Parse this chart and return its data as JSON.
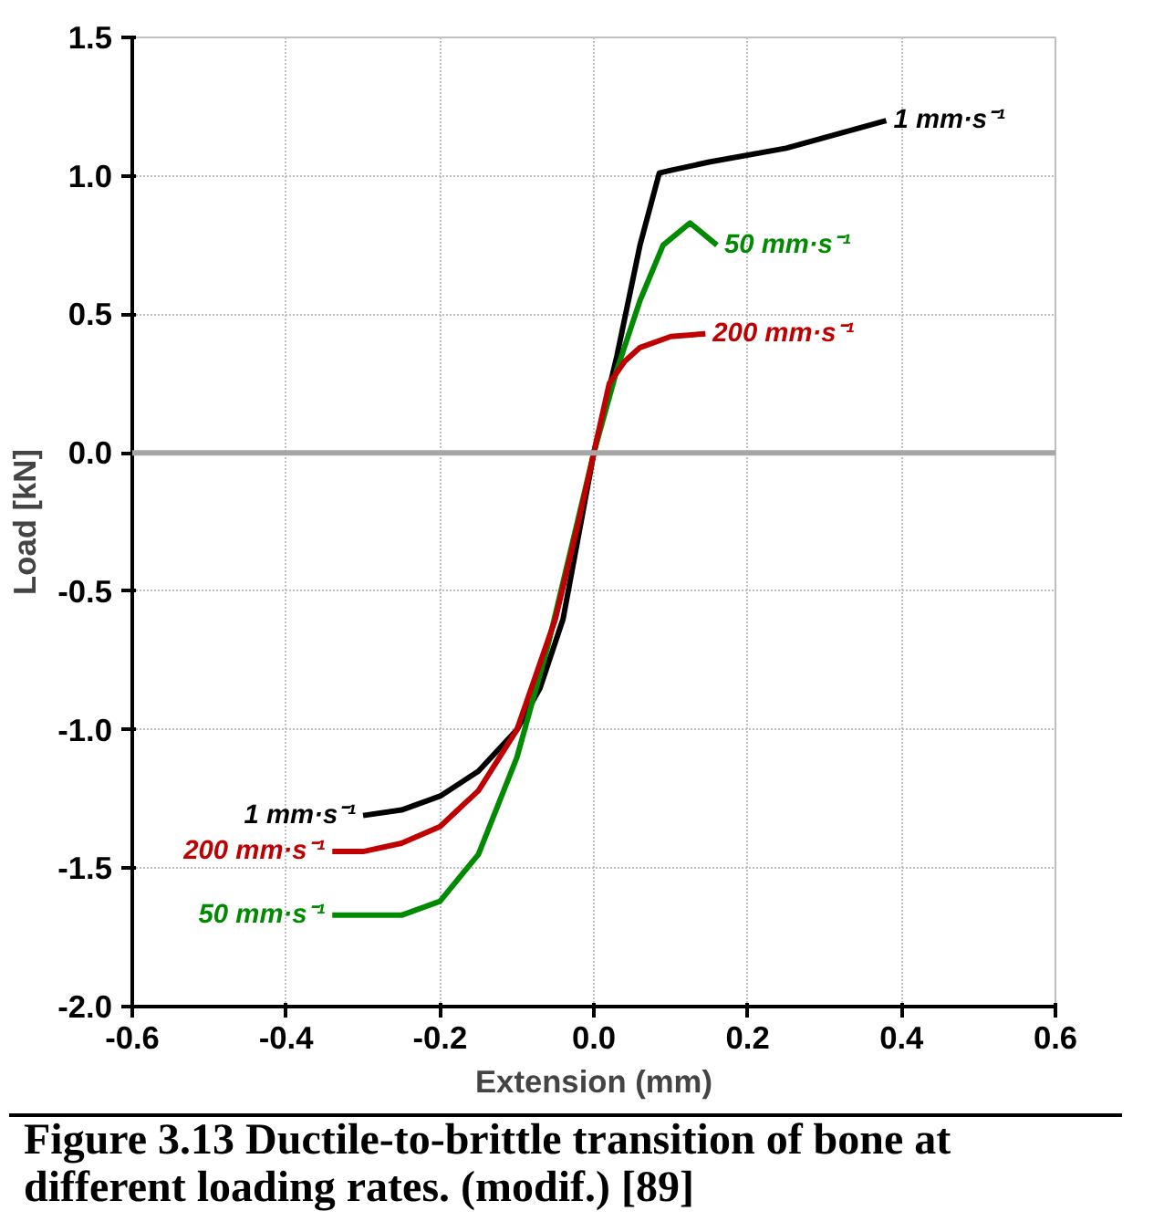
{
  "chart_data": {
    "type": "line",
    "xlabel": "Extension (mm)",
    "ylabel": "Load [kN]",
    "xlim": [
      -0.6,
      0.6
    ],
    "ylim": [
      -2.0,
      1.5
    ],
    "xticks": [
      {
        "value": -0.6,
        "label": "-0.6"
      },
      {
        "value": -0.4,
        "label": "-0.4"
      },
      {
        "value": -0.2,
        "label": "-0.2"
      },
      {
        "value": 0,
        "label": "0.0"
      },
      {
        "value": 0.2,
        "label": "0.2"
      },
      {
        "value": 0.4,
        "label": "0.4"
      },
      {
        "value": 0.6,
        "label": "0.6"
      }
    ],
    "yticks": [
      {
        "value": -2.0,
        "label": "-2.0"
      },
      {
        "value": -1.5,
        "label": "-1.5"
      },
      {
        "value": -1.0,
        "label": "-1.0"
      },
      {
        "value": -0.5,
        "label": "-0.5"
      },
      {
        "value": 0,
        "label": "0.0"
      },
      {
        "value": 0.5,
        "label": "0.5"
      },
      {
        "value": 1.0,
        "label": "1.0"
      },
      {
        "value": 1.5,
        "label": "1.5"
      }
    ],
    "grid": true,
    "line_style": "solid",
    "ref_lines": [
      {
        "axis": "y",
        "value": 0,
        "color": "#a6a6a6"
      }
    ],
    "series": [
      {
        "color": "#000000",
        "x": [
          -0.3,
          -0.25,
          -0.2,
          -0.15,
          -0.1,
          -0.07,
          -0.04,
          -0.02,
          0.0,
          0.03,
          0.06,
          0.085,
          0.1,
          0.15,
          0.25,
          0.38
        ],
        "values": [
          -1.31,
          -1.29,
          -1.24,
          -1.15,
          -1.0,
          -0.85,
          -0.6,
          -0.3,
          0.0,
          0.35,
          0.75,
          1.01,
          1.02,
          1.05,
          1.1,
          1.2
        ]
      },
      {
        "color": "#008a00",
        "x": [
          -0.34,
          -0.25,
          -0.2,
          -0.15,
          -0.1,
          -0.06,
          -0.03,
          0.0,
          0.03,
          0.06,
          0.09,
          0.125,
          0.16
        ],
        "values": [
          -1.67,
          -1.67,
          -1.62,
          -1.45,
          -1.1,
          -0.7,
          -0.35,
          0.0,
          0.3,
          0.55,
          0.75,
          0.83,
          0.75
        ]
      },
      {
        "color": "#c00000",
        "x": [
          -0.34,
          -0.3,
          -0.25,
          -0.2,
          -0.15,
          -0.1,
          -0.05,
          -0.02,
          0.0,
          0.02,
          0.04,
          0.06,
          0.1,
          0.145
        ],
        "values": [
          -1.44,
          -1.44,
          -1.41,
          -1.35,
          -1.22,
          -1.0,
          -0.6,
          -0.25,
          0.0,
          0.25,
          0.33,
          0.38,
          0.42,
          0.43
        ]
      }
    ],
    "annotations": [
      {
        "text": "1 mm·s⁻¹",
        "x": 0.38,
        "y": 1.2
      },
      {
        "text": "50 mm·s⁻¹",
        "x": 0.16,
        "y": 0.75
      },
      {
        "text": "200 mm·s⁻¹",
        "x": 0.145,
        "y": 0.43
      },
      {
        "text": "1 mm·s⁻¹",
        "x": -0.3,
        "y": -1.31
      },
      {
        "text": "200 mm·s⁻¹",
        "x": -0.34,
        "y": -1.44
      },
      {
        "text": "50 mm·s⁻¹",
        "x": -0.34,
        "y": -1.67
      },
      "Figure 3.13  Ductile-to-brittle transition of bone at different loading rates. (modif.) [89]"
    ]
  }
}
